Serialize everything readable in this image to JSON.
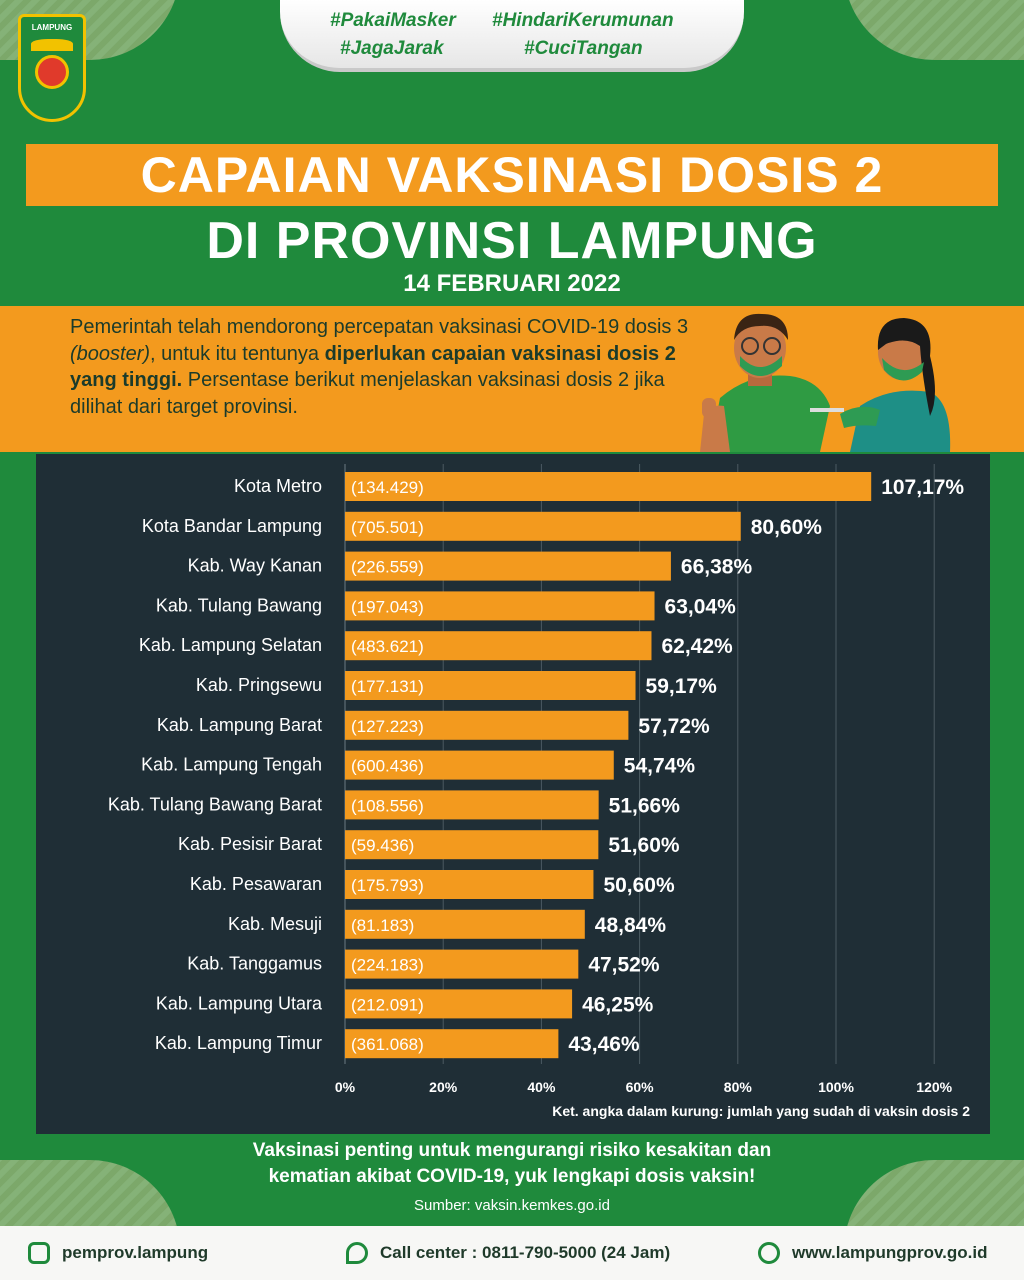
{
  "header": {
    "logo_text": "LAMPUNG",
    "hashtags": [
      "#PakaiMasker",
      "#HindariKerumunan",
      "#JagaJarak",
      "#CuciTangan"
    ],
    "title_line1": "CAPAIAN VAKSINASI DOSIS 2",
    "title_line2": "DI PROVINSI LAMPUNG",
    "date": "14 FEBRUARI 2022"
  },
  "intro": {
    "part1": "Pemerintah telah mendorong percepatan vaksinasi COVID-19 dosis 3 ",
    "booster": "(booster)",
    "part2": ", untuk itu tentunya ",
    "bold": "diperlukan capaian vaksinasi dosis 2 yang tinggi.",
    "part3": " Persentase berikut menjelaskan vaksinasi dosis 2 jika dilihat dari target provinsi."
  },
  "chart_data": {
    "type": "bar",
    "orientation": "horizontal",
    "title": "",
    "xlabel": "",
    "ylabel": "",
    "xlim": [
      0,
      120
    ],
    "x_ticks": [
      "0%",
      "20%",
      "40%",
      "60%",
      "80%",
      "100%",
      "120%"
    ],
    "grid": true,
    "categories": [
      "Kota Metro",
      "Kota Bandar Lampung",
      "Kab. Way Kanan",
      "Kab. Tulang Bawang",
      "Kab. Lampung Selatan",
      "Kab. Pringsewu",
      "Kab. Lampung Barat",
      "Kab. Lampung Tengah",
      "Kab. Tulang Bawang Barat",
      "Kab. Pesisir Barat",
      "Kab. Pesawaran",
      "Kab. Mesuji",
      "Kab. Tanggamus",
      "Kab. Lampung Utara",
      "Kab. Lampung Timur"
    ],
    "values": [
      107.17,
      80.6,
      66.38,
      63.04,
      62.42,
      59.17,
      57.72,
      54.74,
      51.66,
      51.6,
      50.6,
      48.84,
      47.52,
      46.25,
      43.46
    ],
    "value_labels": [
      "107,17%",
      "80,60%",
      "66,38%",
      "63,04%",
      "62,42%",
      "59,17%",
      "57,72%",
      "54,74%",
      "51,66%",
      "51,60%",
      "50,60%",
      "48,84%",
      "47,52%",
      "46,25%",
      "43,46%"
    ],
    "bar_inner_labels": [
      "(134.429)",
      "(705.501)",
      "(226.559)",
      "(197.043)",
      "(483.621)",
      "(177.131)",
      "(127.223)",
      "(600.436)",
      "(108.556)",
      "(59.436)",
      "(175.793)",
      "(81.183)",
      "(224.183)",
      "(212.091)",
      "(361.068)"
    ],
    "note": "Ket. angka dalam kurung: jumlah yang sudah di vaksin dosis 2",
    "bar_color": "#f39a1e"
  },
  "footer": {
    "message_line1": "Vaksinasi penting untuk mengurangi risiko kesakitan dan",
    "message_line2": "kematian akibat COVID-19, yuk lengkapi dosis vaksin!",
    "source": "Sumber: vaksin.kemkes.go.id",
    "instagram": "pemprov.lampung",
    "call_center": "Call center : 0811-790-5000 (24 Jam)",
    "website": "www.lampungprov.go.id"
  },
  "colors": {
    "green": "#1f8a3c",
    "orange": "#f39a1e",
    "panel": "#1f2e36"
  }
}
